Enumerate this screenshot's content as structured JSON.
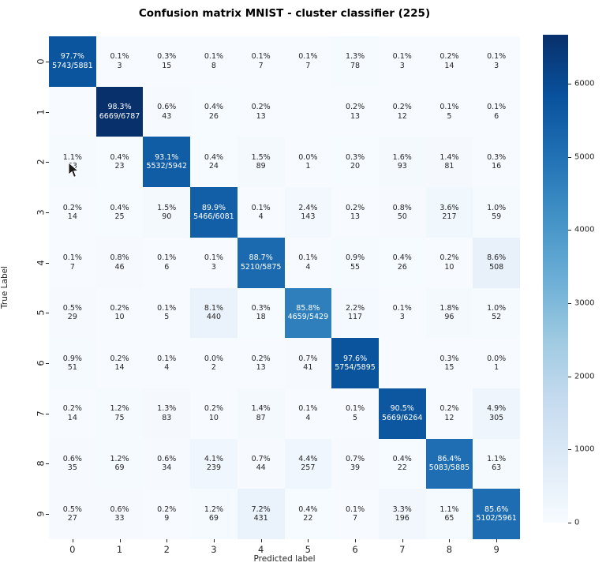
{
  "chart_data": {
    "type": "heatmap",
    "title": "Confusion matrix MNIST - cluster classifier (225)",
    "xlabel": "Predicted label",
    "ylabel": "True Label",
    "x_tick_labels": [
      "0",
      "1",
      "2",
      "3",
      "4",
      "5",
      "6",
      "7",
      "8",
      "9"
    ],
    "y_tick_labels": [
      "0",
      "1",
      "2",
      "3",
      "4",
      "5",
      "6",
      "7",
      "8",
      "9"
    ],
    "vmin": 0,
    "vmax": 6669,
    "colorbar_ticks": [
      0,
      1000,
      2000,
      3000,
      4000,
      5000,
      6000
    ],
    "colormap": "Blues",
    "colormap_anchors": [
      "#f7fbff",
      "#deebf7",
      "#c6dbef",
      "#9ecae1",
      "#6baed6",
      "#4292c6",
      "#2171b5",
      "#08519c",
      "#08306b"
    ],
    "text_color_dark": "#262626",
    "text_color_light": "#ffffff",
    "counts": [
      [
        5743,
        3,
        15,
        8,
        7,
        7,
        78,
        3,
        14,
        3
      ],
      [
        0,
        6669,
        43,
        26,
        13,
        0,
        13,
        12,
        5,
        6
      ],
      [
        63,
        23,
        5532,
        24,
        89,
        1,
        20,
        93,
        81,
        16
      ],
      [
        14,
        25,
        90,
        5466,
        4,
        143,
        13,
        50,
        217,
        59
      ],
      [
        7,
        46,
        6,
        3,
        5210,
        4,
        55,
        26,
        10,
        508
      ],
      [
        29,
        10,
        5,
        440,
        18,
        4659,
        117,
        3,
        96,
        52
      ],
      [
        51,
        14,
        4,
        2,
        13,
        41,
        5754,
        0,
        15,
        1
      ],
      [
        14,
        75,
        83,
        10,
        87,
        4,
        5,
        5669,
        12,
        305
      ],
      [
        35,
        69,
        34,
        239,
        44,
        257,
        39,
        22,
        5083,
        63
      ],
      [
        27,
        33,
        9,
        69,
        431,
        22,
        7,
        196,
        65,
        5102
      ]
    ],
    "cell_labels": [
      [
        [
          "97.7%",
          "5743/5881"
        ],
        [
          "0.1%",
          "3"
        ],
        [
          "0.3%",
          "15"
        ],
        [
          "0.1%",
          "8"
        ],
        [
          "0.1%",
          "7"
        ],
        [
          "0.1%",
          "7"
        ],
        [
          "1.3%",
          "78"
        ],
        [
          "0.1%",
          "3"
        ],
        [
          "0.2%",
          "14"
        ],
        [
          "0.1%",
          "3"
        ]
      ],
      [
        null,
        [
          "98.3%",
          "6669/6787"
        ],
        [
          "0.6%",
          "43"
        ],
        [
          "0.4%",
          "26"
        ],
        [
          "0.2%",
          "13"
        ],
        null,
        [
          "0.2%",
          "13"
        ],
        [
          "0.2%",
          "12"
        ],
        [
          "0.1%",
          "5"
        ],
        [
          "0.1%",
          "6"
        ]
      ],
      [
        [
          "1.1%",
          "63"
        ],
        [
          "0.4%",
          "23"
        ],
        [
          "93.1%",
          "5532/5942"
        ],
        [
          "0.4%",
          "24"
        ],
        [
          "1.5%",
          "89"
        ],
        [
          "0.0%",
          "1"
        ],
        [
          "0.3%",
          "20"
        ],
        [
          "1.6%",
          "93"
        ],
        [
          "1.4%",
          "81"
        ],
        [
          "0.3%",
          "16"
        ]
      ],
      [
        [
          "0.2%",
          "14"
        ],
        [
          "0.4%",
          "25"
        ],
        [
          "1.5%",
          "90"
        ],
        [
          "89.9%",
          "5466/6081"
        ],
        [
          "0.1%",
          "4"
        ],
        [
          "2.4%",
          "143"
        ],
        [
          "0.2%",
          "13"
        ],
        [
          "0.8%",
          "50"
        ],
        [
          "3.6%",
          "217"
        ],
        [
          "1.0%",
          "59"
        ]
      ],
      [
        [
          "0.1%",
          "7"
        ],
        [
          "0.8%",
          "46"
        ],
        [
          "0.1%",
          "6"
        ],
        [
          "0.1%",
          "3"
        ],
        [
          "88.7%",
          "5210/5875"
        ],
        [
          "0.1%",
          "4"
        ],
        [
          "0.9%",
          "55"
        ],
        [
          "0.4%",
          "26"
        ],
        [
          "0.2%",
          "10"
        ],
        [
          "8.6%",
          "508"
        ]
      ],
      [
        [
          "0.5%",
          "29"
        ],
        [
          "0.2%",
          "10"
        ],
        [
          "0.1%",
          "5"
        ],
        [
          "8.1%",
          "440"
        ],
        [
          "0.3%",
          "18"
        ],
        [
          "85.8%",
          "4659/5429"
        ],
        [
          "2.2%",
          "117"
        ],
        [
          "0.1%",
          "3"
        ],
        [
          "1.8%",
          "96"
        ],
        [
          "1.0%",
          "52"
        ]
      ],
      [
        [
          "0.9%",
          "51"
        ],
        [
          "0.2%",
          "14"
        ],
        [
          "0.1%",
          "4"
        ],
        [
          "0.0%",
          "2"
        ],
        [
          "0.2%",
          "13"
        ],
        [
          "0.7%",
          "41"
        ],
        [
          "97.6%",
          "5754/5895"
        ],
        null,
        [
          "0.3%",
          "15"
        ],
        [
          "0.0%",
          "1"
        ]
      ],
      [
        [
          "0.2%",
          "14"
        ],
        [
          "1.2%",
          "75"
        ],
        [
          "1.3%",
          "83"
        ],
        [
          "0.2%",
          "10"
        ],
        [
          "1.4%",
          "87"
        ],
        [
          "0.1%",
          "4"
        ],
        [
          "0.1%",
          "5"
        ],
        [
          "90.5%",
          "5669/6264"
        ],
        [
          "0.2%",
          "12"
        ],
        [
          "4.9%",
          "305"
        ]
      ],
      [
        [
          "0.6%",
          "35"
        ],
        [
          "1.2%",
          "69"
        ],
        [
          "0.6%",
          "34"
        ],
        [
          "4.1%",
          "239"
        ],
        [
          "0.7%",
          "44"
        ],
        [
          "4.4%",
          "257"
        ],
        [
          "0.7%",
          "39"
        ],
        [
          "0.4%",
          "22"
        ],
        [
          "86.4%",
          "5083/5885"
        ],
        [
          "1.1%",
          "63"
        ]
      ],
      [
        [
          "0.5%",
          "27"
        ],
        [
          "0.6%",
          "33"
        ],
        [
          "0.2%",
          "9"
        ],
        [
          "1.2%",
          "69"
        ],
        [
          "7.2%",
          "431"
        ],
        [
          "0.4%",
          "22"
        ],
        [
          "0.1%",
          "7"
        ],
        [
          "3.3%",
          "196"
        ],
        [
          "1.1%",
          "65"
        ],
        [
          "85.6%",
          "5102/5961"
        ]
      ]
    ]
  }
}
